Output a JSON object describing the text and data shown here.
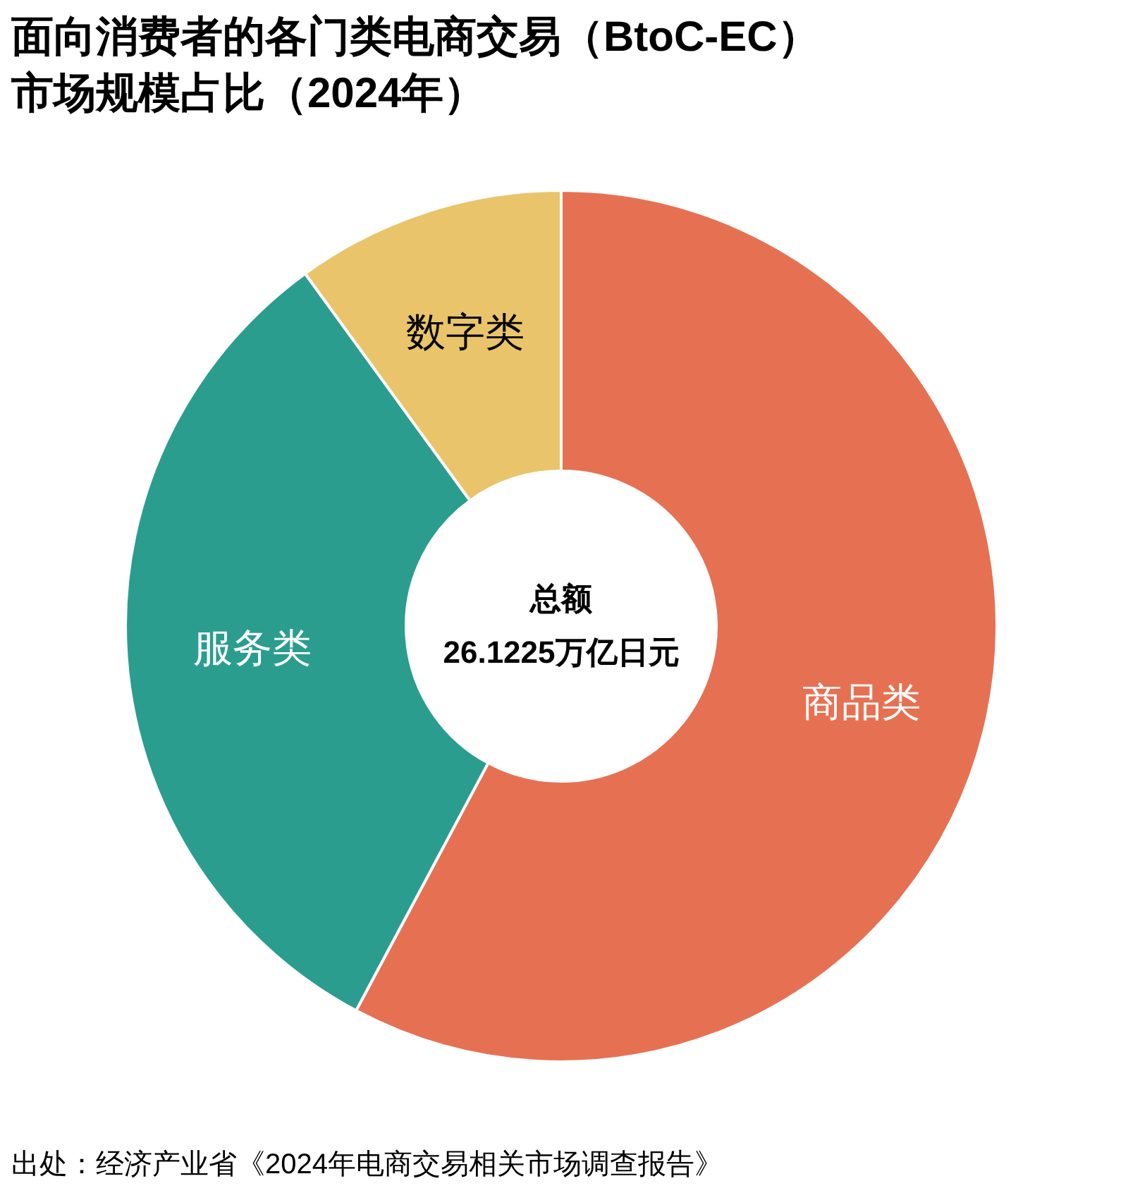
{
  "chart_data": {
    "type": "donut",
    "title": "面向消费者的各门类电商交易（BtoC-EC）市场规模占比（2024年）",
    "categories": [
      "商品类",
      "服务类",
      "数字类"
    ],
    "values": [
      57.8,
      32.2,
      10.0
    ],
    "colors": [
      "#e67152",
      "#2a9d8f",
      "#e9c46a"
    ],
    "annotations": [
      "总额",
      "26.1225万亿日元",
      "出处：经济产业省《2024年电商交易相关市场调查报告》"
    ]
  }
}
